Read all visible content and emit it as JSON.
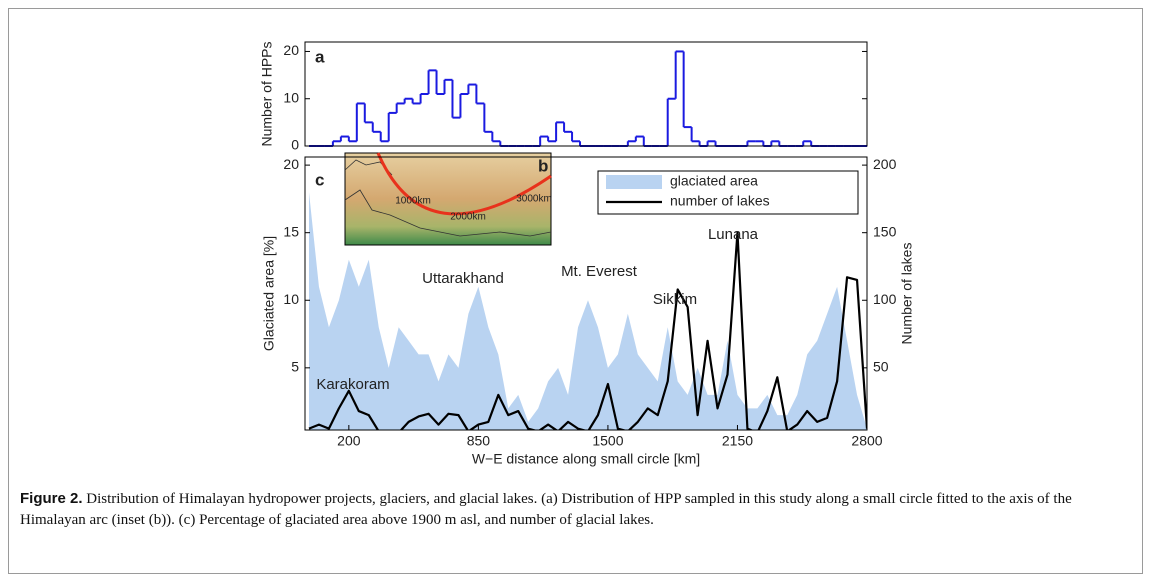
{
  "chart_data": [
    {
      "type": "histogram",
      "panel_label": "a",
      "ylabel": "Number of HPPs",
      "color": "#1a1ae0",
      "bins": [
        0,
        40,
        80,
        120,
        160,
        200,
        240,
        280,
        320,
        360,
        400,
        440,
        480,
        520,
        560,
        600,
        640,
        680,
        720,
        760,
        800,
        840,
        880,
        920,
        960,
        1000,
        1040,
        1080,
        1120,
        1160,
        1200,
        1240,
        1280,
        1320,
        1360,
        1400,
        1440,
        1480,
        1520,
        1560,
        1600,
        1640,
        1680,
        1720,
        1760,
        1800,
        1840,
        1880,
        1920,
        1960,
        2000,
        2040,
        2080,
        2120,
        2160,
        2200,
        2240,
        2280,
        2320,
        2360,
        2400,
        2440,
        2480,
        2520,
        2560,
        2600,
        2640,
        2680,
        2720,
        2760,
        2800
      ],
      "counts": [
        0,
        0,
        0,
        1,
        2,
        1,
        9,
        5,
        3,
        1,
        7,
        9,
        10,
        9,
        11,
        16,
        11,
        14,
        6,
        11,
        13,
        9,
        3,
        1,
        0,
        0,
        0,
        0,
        0,
        2,
        1,
        5,
        3,
        1,
        0,
        0,
        0,
        0,
        0,
        0,
        1,
        2,
        0,
        0,
        0,
        10,
        20,
        4,
        1,
        0,
        1,
        0,
        0,
        0,
        0,
        1,
        1,
        0,
        1,
        0,
        0,
        0,
        1,
        0,
        0,
        0,
        0,
        0,
        0,
        0
      ],
      "xlim": [
        -20,
        2800
      ],
      "ylim": [
        0,
        22
      ],
      "yticks": [
        0,
        10,
        20
      ]
    },
    {
      "type": "combo",
      "panel_label": "c",
      "xlabel": "W−E distance along small circle [km]",
      "ylabel": "Glaciated area [%]",
      "y2label": "Number of lakes",
      "x": [
        0,
        50,
        100,
        150,
        200,
        250,
        300,
        350,
        400,
        450,
        500,
        550,
        600,
        650,
        700,
        750,
        800,
        850,
        900,
        950,
        1000,
        1050,
        1100,
        1150,
        1200,
        1250,
        1300,
        1350,
        1400,
        1450,
        1500,
        1550,
        1600,
        1650,
        1700,
        1750,
        1800,
        1850,
        1900,
        1950,
        2000,
        2050,
        2100,
        2150,
        2200,
        2250,
        2300,
        2350,
        2400,
        2450,
        2500,
        2550,
        2600,
        2650,
        2700,
        2750,
        2800
      ],
      "series": [
        {
          "name": "glaciated area",
          "type": "area",
          "color": "#b9d3f1",
          "values": [
            18,
            11,
            8,
            10,
            13,
            11,
            13,
            8,
            5,
            8,
            7,
            6,
            6,
            4,
            6,
            5,
            9,
            11,
            8,
            6,
            2,
            3,
            1,
            2,
            4,
            5,
            3,
            8,
            10,
            8,
            5,
            6,
            9,
            6,
            5,
            4,
            8,
            4,
            3,
            5,
            3,
            3,
            7,
            3,
            2,
            2,
            3,
            1.5,
            1.5,
            3,
            6,
            7,
            9,
            11,
            7,
            3,
            0.5
          ]
        },
        {
          "name": "number of lakes",
          "type": "line",
          "axis": "y2",
          "color": "#000000",
          "values": [
            5,
            8,
            5,
            20,
            33,
            18,
            15,
            3,
            3,
            2,
            10,
            14,
            16,
            8,
            16,
            15,
            3,
            8,
            10,
            30,
            15,
            18,
            5,
            3,
            8,
            3,
            10,
            5,
            3,
            15,
            38,
            5,
            3,
            10,
            20,
            15,
            40,
            108,
            95,
            15,
            70,
            20,
            45,
            150,
            5,
            2,
            18,
            43,
            3,
            8,
            18,
            10,
            13,
            40,
            117,
            115,
            5
          ]
        }
      ],
      "xlim": [
        -20,
        2800
      ],
      "xticks": [
        200,
        850,
        1500,
        2150,
        2800
      ],
      "ylim": [
        0.4,
        20.6
      ],
      "yticks": [
        5,
        10,
        15,
        20
      ],
      "y2lim": [
        4,
        206
      ],
      "y2ticks": [
        50,
        100,
        150,
        200
      ],
      "legend": "upper right",
      "annotations": [
        "Karakoram",
        "Uttarakhand",
        "Mt. Everest",
        "Sikkim",
        "Lunana"
      ],
      "inset": {
        "label": "b",
        "distance_labels": [
          "1000km",
          "2000km",
          "3000km"
        ]
      }
    }
  ],
  "caption": {
    "label": "Figure 2.",
    "text": "Distribution of Himalayan hydropower projects, glaciers, and glacial lakes. (a) Distribution of HPP sampled in this study along a small circle fitted to the axis of the Himalayan arc (inset (b)). (c) Percentage of glaciated area above 1900 m asl, and number of glacial lakes."
  }
}
